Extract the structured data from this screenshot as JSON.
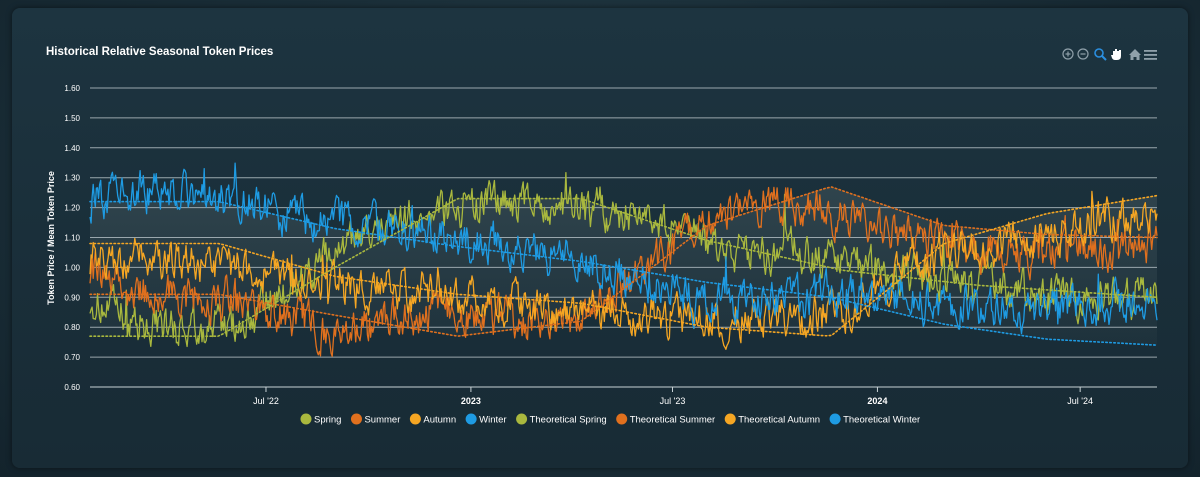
{
  "chart_data": {
    "type": "line",
    "title": "Historical Relative Seasonal Token Prices",
    "ylabel": "Token Price / Mean Token Price",
    "xlabel": "",
    "ylim": [
      0.6,
      1.6
    ],
    "yticks": [
      "0.60",
      "0.70",
      "0.80",
      "0.90",
      "1.00",
      "1.10",
      "1.20",
      "1.30",
      "1.40",
      "1.50",
      "1.60"
    ],
    "xrange": [
      "2022-01-24",
      "2024-09-08"
    ],
    "xticks": [
      {
        "date": "2022-07-01",
        "label": "Jul '22"
      },
      {
        "date": "2023-01-01",
        "label": "2023"
      },
      {
        "date": "2023-07-01",
        "label": "Jul '23"
      },
      {
        "date": "2024-01-01",
        "label": "2024"
      },
      {
        "date": "2024-07-01",
        "label": "Jul '24"
      }
    ],
    "grid": true,
    "legend_position": "bottom",
    "colors": {
      "spring": "#a9b83e",
      "summer": "#e0701e",
      "autumn": "#f5a623",
      "winter": "#1e9be3"
    },
    "series": [
      {
        "name": "Spring",
        "key": "spring",
        "style": "solid",
        "points": [
          [
            "2022-01-24",
            0.9
          ],
          [
            "2022-03-01",
            0.82
          ],
          [
            "2022-04-15",
            0.8
          ],
          [
            "2022-06-01",
            0.8
          ],
          [
            "2022-07-15",
            0.9
          ],
          [
            "2022-09-01",
            1.05
          ],
          [
            "2022-10-15",
            1.13
          ],
          [
            "2022-12-01",
            1.2
          ],
          [
            "2023-01-15",
            1.21
          ],
          [
            "2023-03-01",
            1.21
          ],
          [
            "2023-04-15",
            1.2
          ],
          [
            "2023-06-01",
            1.18
          ],
          [
            "2023-07-15",
            1.1
          ],
          [
            "2023-09-01",
            1.05
          ],
          [
            "2023-10-15",
            1.05
          ],
          [
            "2023-12-01",
            1.02
          ],
          [
            "2024-01-15",
            0.98
          ],
          [
            "2024-03-01",
            0.96
          ],
          [
            "2024-04-15",
            0.93
          ],
          [
            "2024-06-01",
            0.91
          ],
          [
            "2024-07-15",
            0.9
          ],
          [
            "2024-09-08",
            0.9
          ]
        ]
      },
      {
        "name": "Summer",
        "key": "summer",
        "style": "solid",
        "points": [
          [
            "2022-01-24",
            1.0
          ],
          [
            "2022-03-01",
            0.92
          ],
          [
            "2022-04-15",
            0.9
          ],
          [
            "2022-06-01",
            0.9
          ],
          [
            "2022-07-15",
            0.85
          ],
          [
            "2022-09-01",
            0.78
          ],
          [
            "2022-10-15",
            0.82
          ],
          [
            "2022-12-01",
            0.86
          ],
          [
            "2023-01-15",
            0.84
          ],
          [
            "2023-03-01",
            0.82
          ],
          [
            "2023-04-15",
            0.85
          ],
          [
            "2023-06-01",
            0.98
          ],
          [
            "2023-07-15",
            1.1
          ],
          [
            "2023-09-01",
            1.2
          ],
          [
            "2023-10-15",
            1.2
          ],
          [
            "2023-12-01",
            1.18
          ],
          [
            "2024-01-15",
            1.12
          ],
          [
            "2024-03-01",
            1.08
          ],
          [
            "2024-04-15",
            1.05
          ],
          [
            "2024-06-01",
            1.05
          ],
          [
            "2024-07-15",
            1.05
          ],
          [
            "2024-09-08",
            1.08
          ]
        ]
      },
      {
        "name": "Autumn",
        "key": "autumn",
        "style": "solid",
        "points": [
          [
            "2022-01-24",
            1.03
          ],
          [
            "2022-03-01",
            1.02
          ],
          [
            "2022-04-15",
            1.02
          ],
          [
            "2022-06-01",
            1.0
          ],
          [
            "2022-07-15",
            0.98
          ],
          [
            "2022-09-01",
            0.93
          ],
          [
            "2022-10-15",
            0.92
          ],
          [
            "2022-12-01",
            0.92
          ],
          [
            "2023-01-15",
            0.9
          ],
          [
            "2023-03-01",
            0.86
          ],
          [
            "2023-04-15",
            0.86
          ],
          [
            "2023-06-01",
            0.85
          ],
          [
            "2023-07-15",
            0.82
          ],
          [
            "2023-09-01",
            0.82
          ],
          [
            "2023-10-15",
            0.83
          ],
          [
            "2023-12-01",
            0.86
          ],
          [
            "2024-01-15",
            0.95
          ],
          [
            "2024-03-01",
            1.04
          ],
          [
            "2024-04-15",
            1.08
          ],
          [
            "2024-06-01",
            1.12
          ],
          [
            "2024-07-15",
            1.15
          ],
          [
            "2024-09-08",
            1.16
          ]
        ]
      },
      {
        "name": "Winter",
        "key": "winter",
        "style": "solid",
        "points": [
          [
            "2022-01-24",
            1.22
          ],
          [
            "2022-03-01",
            1.25
          ],
          [
            "2022-04-15",
            1.24
          ],
          [
            "2022-06-01",
            1.22
          ],
          [
            "2022-07-15",
            1.18
          ],
          [
            "2022-09-01",
            1.15
          ],
          [
            "2022-10-15",
            1.14
          ],
          [
            "2022-12-01",
            1.1
          ],
          [
            "2023-01-15",
            1.08
          ],
          [
            "2023-03-01",
            1.05
          ],
          [
            "2023-04-15",
            1.02
          ],
          [
            "2023-06-01",
            0.95
          ],
          [
            "2023-07-15",
            0.9
          ],
          [
            "2023-09-01",
            0.88
          ],
          [
            "2023-10-15",
            0.9
          ],
          [
            "2023-12-01",
            0.9
          ],
          [
            "2024-01-15",
            0.89
          ],
          [
            "2024-03-01",
            0.87
          ],
          [
            "2024-04-15",
            0.86
          ],
          [
            "2024-06-01",
            0.86
          ],
          [
            "2024-07-15",
            0.88
          ],
          [
            "2024-09-08",
            0.88
          ]
        ]
      },
      {
        "name": "Theoretical Spring",
        "key": "spring",
        "style": "dotted",
        "points": [
          [
            "2022-01-24",
            0.77
          ],
          [
            "2022-05-20",
            0.77
          ],
          [
            "2022-09-01",
            1.0
          ],
          [
            "2022-12-20",
            1.23
          ],
          [
            "2023-04-10",
            1.23
          ],
          [
            "2023-08-01",
            1.09
          ],
          [
            "2023-12-01",
            0.99
          ],
          [
            "2024-04-01",
            0.94
          ],
          [
            "2024-09-08",
            0.9
          ]
        ]
      },
      {
        "name": "Theoretical Summer",
        "key": "summer",
        "style": "dotted",
        "points": [
          [
            "2022-01-24",
            0.91
          ],
          [
            "2022-05-20",
            0.91
          ],
          [
            "2022-09-01",
            0.84
          ],
          [
            "2022-12-20",
            0.77
          ],
          [
            "2023-04-10",
            0.82
          ],
          [
            "2023-08-01",
            1.14
          ],
          [
            "2023-11-20",
            1.27
          ],
          [
            "2024-03-01",
            1.14
          ],
          [
            "2024-06-01",
            1.11
          ],
          [
            "2024-09-08",
            1.1
          ]
        ]
      },
      {
        "name": "Theoretical Autumn",
        "key": "autumn",
        "style": "dotted",
        "points": [
          [
            "2022-01-24",
            1.08
          ],
          [
            "2022-05-20",
            1.08
          ],
          [
            "2022-09-01",
            0.97
          ],
          [
            "2022-12-20",
            0.91
          ],
          [
            "2023-04-10",
            0.88
          ],
          [
            "2023-08-01",
            0.8
          ],
          [
            "2023-11-20",
            0.77
          ],
          [
            "2024-03-01",
            1.08
          ],
          [
            "2024-06-01",
            1.18
          ],
          [
            "2024-09-08",
            1.24
          ]
        ]
      },
      {
        "name": "Theoretical Winter",
        "key": "winter",
        "style": "dotted",
        "points": [
          [
            "2022-01-24",
            1.22
          ],
          [
            "2022-05-20",
            1.22
          ],
          [
            "2022-09-01",
            1.13
          ],
          [
            "2022-12-20",
            1.07
          ],
          [
            "2023-04-10",
            1.02
          ],
          [
            "2023-08-01",
            0.95
          ],
          [
            "2023-11-20",
            0.9
          ],
          [
            "2024-03-01",
            0.81
          ],
          [
            "2024-06-01",
            0.76
          ],
          [
            "2024-09-08",
            0.74
          ]
        ]
      }
    ],
    "legend": [
      {
        "label": "Spring",
        "color": "#a9b83e"
      },
      {
        "label": "Summer",
        "color": "#e0701e"
      },
      {
        "label": "Autumn",
        "color": "#f5a623"
      },
      {
        "label": "Winter",
        "color": "#1e9be3"
      },
      {
        "label": "Theoretical Spring",
        "color": "#a9b83e"
      },
      {
        "label": "Theoretical Summer",
        "color": "#e0701e"
      },
      {
        "label": "Theoretical Autumn",
        "color": "#f5a623"
      },
      {
        "label": "Theoretical Winter",
        "color": "#1e9be3"
      }
    ]
  },
  "toolbar": {
    "icons": [
      "zoom-in-icon",
      "zoom-out-icon",
      "selection-zoom-icon",
      "pan-icon",
      "reset-home-icon",
      "menu-icon"
    ]
  }
}
